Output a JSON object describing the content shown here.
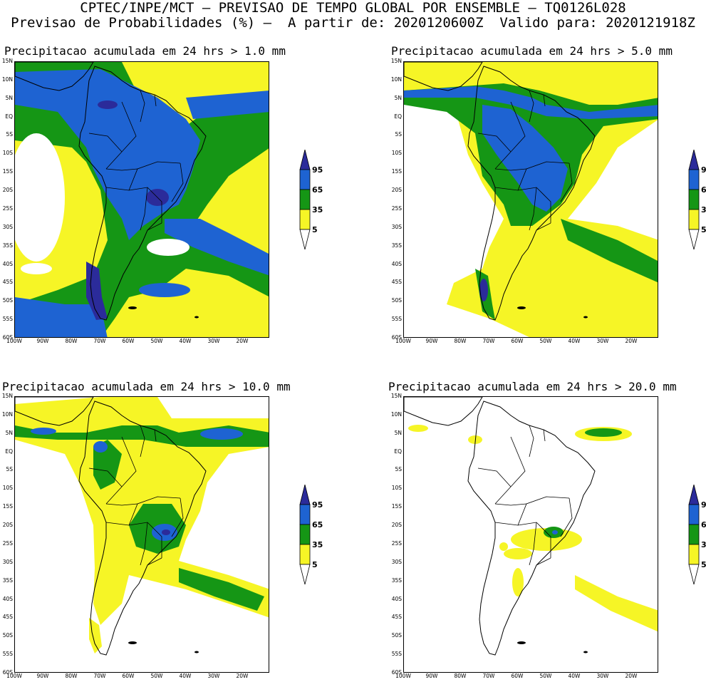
{
  "header": {
    "line1": "CPTEC/INPE/MCT – PREVISAO DE TEMPO GLOBAL POR ENSEMBLE – TQ0126L028",
    "line2": "Previsao de Probabilidades (%) –  A partir de: 2020120600Z  Valido para: 2020121918Z"
  },
  "panels": [
    {
      "title": "Precipitacao acumulada em 24 hrs > 1.0 mm"
    },
    {
      "title": "Precipitacao acumulada em 24 hrs > 5.0 mm"
    },
    {
      "title": "Precipitacao acumulada em 24 hrs > 10.0 mm"
    },
    {
      "title": "Precipitacao acumulada em 24 hrs > 20.0 mm"
    }
  ],
  "lat_labels": [
    "15N",
    "10N",
    "5N",
    "EQ",
    "5S",
    "10S",
    "15S",
    "20S",
    "25S",
    "30S",
    "35S",
    "40S",
    "45S",
    "50S",
    "55S",
    "60S"
  ],
  "lon_labels": [
    "100W",
    "90W",
    "80W",
    "70W",
    "60W",
    "50W",
    "40W",
    "30W",
    "20W"
  ],
  "colorbar": {
    "labels": [
      "95",
      "65",
      "35",
      "5"
    ],
    "colors": {
      "p95": "#2b2b9a",
      "p65": "#1e63d2",
      "p35": "#159615",
      "p5": "#f6f526",
      "none": "#ffffff"
    }
  }
}
